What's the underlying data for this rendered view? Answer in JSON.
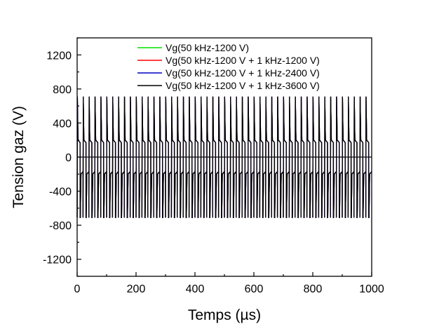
{
  "chart_data": {
    "type": "line",
    "title": "",
    "xlabel": "Temps (µs)",
    "ylabel": "Tension gaz (V)",
    "xlim": [
      0,
      1000
    ],
    "ylim": [
      -1400,
      1400
    ],
    "xticks": [
      0,
      200,
      400,
      600,
      800,
      1000
    ],
    "xtick_labels": [
      "0",
      "200",
      "400",
      "600",
      "800",
      "1000"
    ],
    "yticks": [
      1200,
      800,
      400,
      0,
      -400,
      -800,
      -1200
    ],
    "ytick_labels": [
      "1200",
      "800",
      "400",
      "0",
      "-400",
      "-800",
      "-1200"
    ],
    "grid": false,
    "legend_position": "top",
    "zero_line": 0,
    "series": [
      {
        "name": "Vg(50 kHz-1200 V)",
        "color": "#00e000",
        "frequency_khz": 50,
        "peak": 710,
        "base": 200,
        "low": -710,
        "mod_khz": 0,
        "mod_amp": 0
      },
      {
        "name": "Vg(50 kHz-1200 V + 1 kHz-1200 V)",
        "color": "#ff0000",
        "frequency_khz": 50,
        "peak": 710,
        "base": 200,
        "low": -710,
        "mod_khz": 1,
        "mod_amp": 0
      },
      {
        "name": "Vg(50 kHz-1200 V + 1 kHz-2400 V)",
        "color": "#0000c0",
        "frequency_khz": 50,
        "peak": 710,
        "base": 200,
        "low": -710,
        "mod_khz": 1,
        "mod_amp": 0
      },
      {
        "name": "Vg(50 kHz-1200 V + 1 kHz-3600 V)",
        "color": "#000000",
        "frequency_khz": 50,
        "peak": 710,
        "base": 200,
        "low": -710,
        "mod_khz": 1,
        "mod_amp": 0
      }
    ]
  }
}
